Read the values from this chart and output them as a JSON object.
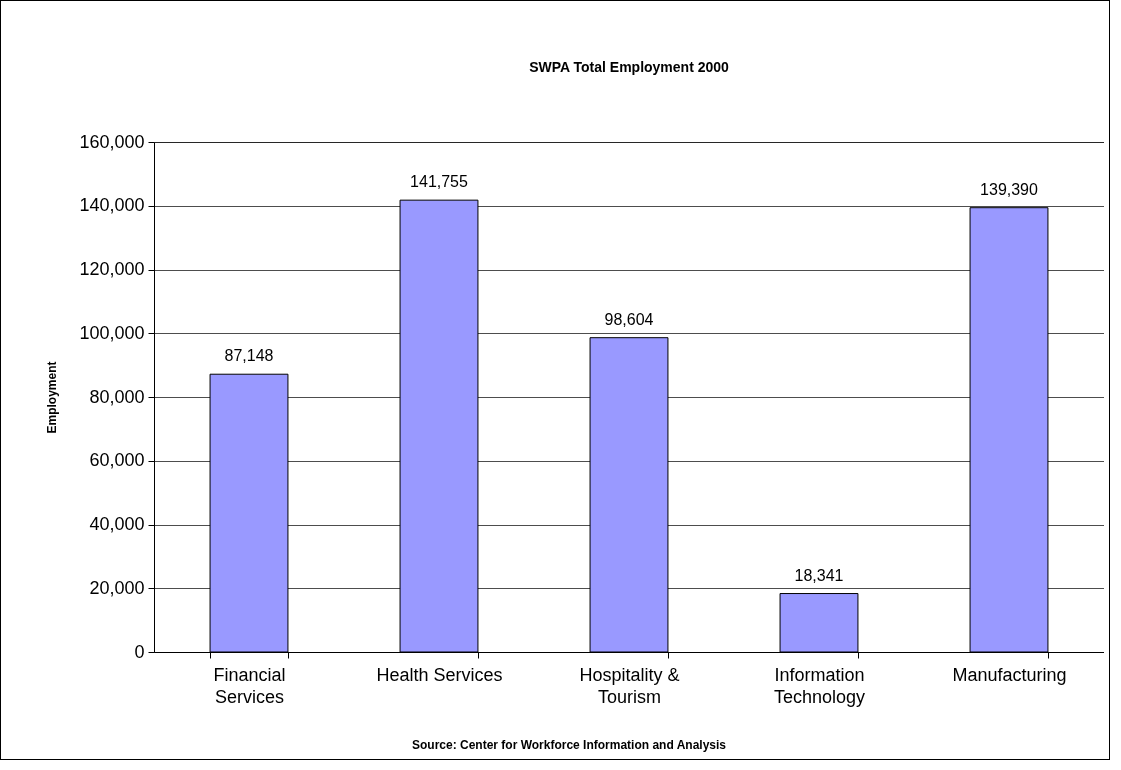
{
  "chart_data": {
    "type": "bar",
    "title": "SWPA Total Employment 2000",
    "ylabel": "Employment",
    "categories": [
      "Financial Services",
      "Health Services",
      "Hospitality & Tourism",
      "Information Technology",
      "Manufacturing"
    ],
    "values": [
      87148,
      141755,
      98604,
      18341,
      139390
    ],
    "value_labels": [
      "87,148",
      "141,755",
      "98,604",
      "18,341",
      "139,390"
    ],
    "color": "#9999ff",
    "ylim": [
      0,
      160000
    ],
    "yticks": [
      0,
      {
        "value": 20000,
        "label": "20,000"
      },
      {
        "value": 40000,
        "label": "40,000"
      },
      {
        "value": 60000,
        "label": "60,000"
      },
      {
        "value": 80000,
        "label": "80,000"
      },
      {
        "value": 100000,
        "label": "100,000"
      },
      {
        "value": 120000,
        "label": "120,000"
      },
      {
        "value": 140000,
        "label": "140,000"
      },
      {
        "value": 160000,
        "label": "160,000"
      }
    ],
    "grid": "y",
    "annotations": [
      "Source: Center for Workforce Information and Analysis"
    ]
  }
}
